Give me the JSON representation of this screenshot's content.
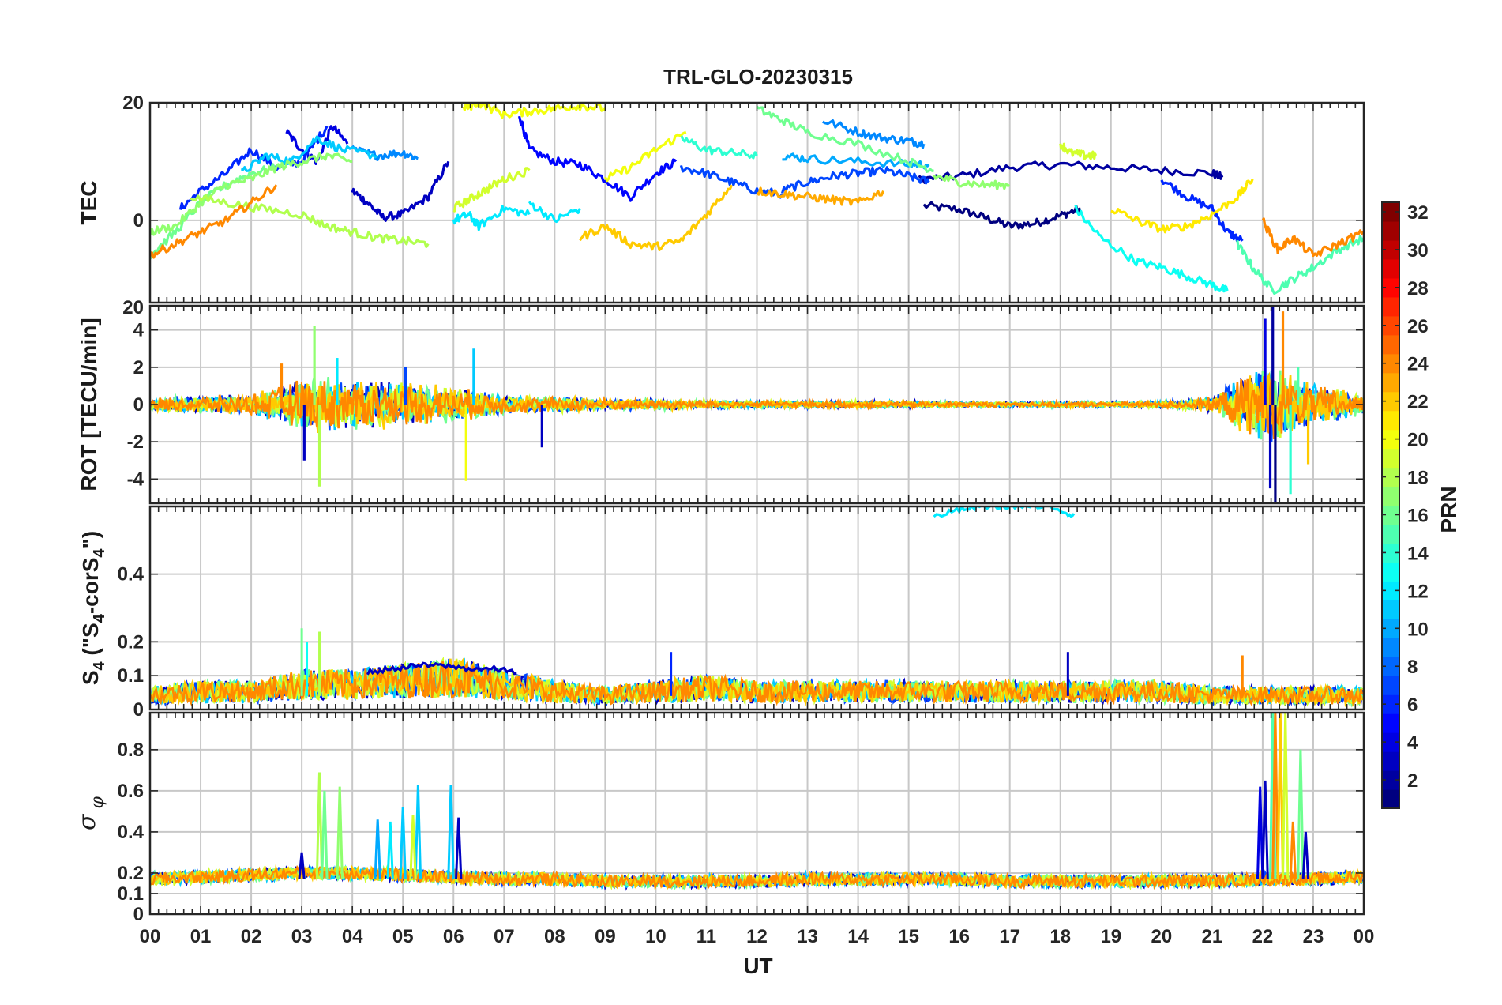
{
  "chart_data": {
    "title": "TRL-GLO-20230315",
    "type": "line",
    "xlabel": "UT",
    "x_tick_labels": [
      "00",
      "01",
      "02",
      "03",
      "04",
      "05",
      "06",
      "07",
      "08",
      "09",
      "10",
      "11",
      "12",
      "13",
      "14",
      "15",
      "16",
      "17",
      "18",
      "19",
      "20",
      "21",
      "22",
      "23",
      "00"
    ],
    "xlim_hours": [
      0,
      24
    ],
    "colorbar": {
      "label": "PRN",
      "range": [
        1,
        32
      ],
      "tick_labels": [
        "2",
        "4",
        "6",
        "8",
        "10",
        "12",
        "14",
        "16",
        "18",
        "20",
        "22",
        "24",
        "26",
        "28",
        "30",
        "32"
      ],
      "colormap": "jet"
    },
    "panels": [
      {
        "name": "tec",
        "ylabel": "TEC",
        "ylim": [
          -14,
          20
        ],
        "y_ticks": [
          0,
          20
        ],
        "y_tick_labels": [
          "0",
          "20"
        ],
        "series": [
          {
            "prn": 1,
            "x": [
              15.3,
              16.0,
              16.5,
              17.0,
              17.5,
              18.0,
              18.4
            ],
            "y": [
              2.5,
              1.8,
              0.5,
              -1.0,
              -0.5,
              0.8,
              2.0
            ]
          },
          {
            "prn": 2,
            "x": [
              15.2,
              16.0,
              17.0,
              18.0,
              19.0,
              20.0,
              21.0,
              21.2
            ],
            "y": [
              7.0,
              7.5,
              9.0,
              9.5,
              9.0,
              8.5,
              8.0,
              7.3
            ]
          },
          {
            "prn": 3,
            "x": [
              4.0,
              4.3,
              4.6,
              5.0,
              5.5,
              5.9
            ],
            "y": [
              5.0,
              3.0,
              0.5,
              1.0,
              4.0,
              10.0
            ]
          },
          {
            "prn": 4,
            "x": [
              2.7,
              3.0,
              3.3,
              3.6,
              3.9
            ],
            "y": [
              15.0,
              12.0,
              10.0,
              16.0,
              13.0
            ]
          },
          {
            "prn": 5,
            "x": [
              7.3,
              7.5,
              8.0,
              8.5,
              9.0,
              9.5,
              10.0,
              10.4
            ],
            "y": [
              18.0,
              12.0,
              10.0,
              9.5,
              7.0,
              4.0,
              8.0,
              10.0
            ]
          },
          {
            "prn": 6,
            "x": [
              0.6,
              1.0,
              1.5,
              2.0,
              2.5,
              3.0,
              3.5
            ],
            "y": [
              2.0,
              5.0,
              8.0,
              12.0,
              9.0,
              10.0,
              16.0
            ]
          },
          {
            "prn": 6,
            "x": [
              20.0,
              20.5,
              21.0,
              21.3,
              21.6
            ],
            "y": [
              7.0,
              4.0,
              2.0,
              -2.0,
              -3.5
            ]
          },
          {
            "prn": 7,
            "x": [
              12.5,
              13.0,
              13.5,
              14.0,
              14.5,
              15.0,
              15.4
            ],
            "y": [
              5.0,
              6.5,
              7.5,
              8.0,
              8.5,
              7.5,
              6.5
            ]
          },
          {
            "prn": 7,
            "x": [
              10.5,
              11.0,
              11.5,
              12.0,
              12.5
            ],
            "y": [
              9.0,
              8.0,
              6.5,
              5.0,
              4.5
            ]
          },
          {
            "prn": 9,
            "x": [
              4.0,
              4.5,
              5.0,
              5.3
            ],
            "y": [
              12.0,
              11.0,
              11.5,
              10.5
            ]
          },
          {
            "prn": 9,
            "x": [
              13.3,
              14.0,
              14.5,
              15.0,
              15.3
            ],
            "y": [
              17.0,
              15.0,
              14.0,
              13.5,
              13.0
            ]
          },
          {
            "prn": 10,
            "x": [
              12.5,
              13.0,
              14.0,
              15.0,
              15.4
            ],
            "y": [
              11.0,
              10.5,
              10.0,
              9.5,
              9.5
            ]
          },
          {
            "prn": 11,
            "x": [
              1.8,
              2.3,
              2.8,
              3.3,
              3.8,
              4.5
            ],
            "y": [
              8.0,
              11.0,
              10.0,
              14.0,
              12.0,
              11.0
            ]
          },
          {
            "prn": 12,
            "x": [
              6.0,
              6.3,
              6.5,
              7.0,
              7.5
            ],
            "y": [
              0.0,
              1.0,
              -1.0,
              2.0,
              1.0
            ]
          },
          {
            "prn": 12,
            "x": [
              7.5,
              8.0,
              8.5
            ],
            "y": [
              3.0,
              0.0,
              2.0
            ]
          },
          {
            "prn": 13,
            "x": [
              18.3,
              18.8,
              19.5,
              20.0,
              20.5,
              21.0,
              21.3
            ],
            "y": [
              2.0,
              -3.0,
              -7.0,
              -8.0,
              -9.5,
              -11.0,
              -12.0
            ]
          },
          {
            "prn": 14,
            "x": [
              10.5,
              11.0,
              11.5,
              12.0
            ],
            "y": [
              14.0,
              12.0,
              11.5,
              11.0
            ]
          },
          {
            "prn": 15,
            "x": [
              21.5,
              21.8,
              22.2,
              22.6,
              23.0,
              23.5,
              24.0
            ],
            "y": [
              -4.0,
              -8.0,
              -12.0,
              -10.0,
              -8.0,
              -5.0,
              -3.0
            ]
          },
          {
            "prn": 16,
            "x": [
              12.0,
              12.5,
              13.0,
              14.0,
              15.0,
              15.5
            ],
            "y": [
              19.0,
              17.0,
              15.0,
              13.0,
              10.0,
              8.5
            ]
          },
          {
            "prn": 16,
            "x": [
              0.0,
              0.5,
              1.0,
              1.5,
              2.0,
              2.5
            ],
            "y": [
              -6.0,
              -2.0,
              3.0,
              6.0,
              8.0,
              9.0
            ]
          },
          {
            "prn": 17,
            "x": [
              0.0,
              0.5,
              1.0,
              1.5,
              2.0,
              2.5,
              3.0,
              3.5,
              4.0
            ],
            "y": [
              -2.0,
              -1.0,
              3.0,
              6.0,
              7.0,
              9.0,
              10.0,
              11.0,
              10.0
            ]
          },
          {
            "prn": 17,
            "x": [
              15.5,
              16.0,
              16.5,
              17.0
            ],
            "y": [
              7.5,
              6.5,
              6.0,
              6.0
            ]
          },
          {
            "prn": 18,
            "x": [
              0.8,
              1.5,
              2.2,
              3.0,
              3.5,
              4.0,
              4.5,
              5.0,
              5.5
            ],
            "y": [
              4.0,
              3.0,
              2.0,
              1.0,
              -1.0,
              -2.0,
              -3.0,
              -3.5,
              -4.0
            ]
          },
          {
            "prn": 19,
            "x": [
              6.0,
              6.3,
              6.6,
              7.0,
              7.5
            ],
            "y": [
              2.0,
              3.5,
              5.0,
              7.0,
              8.5
            ]
          },
          {
            "prn": 19,
            "x": [
              18.0,
              18.2,
              18.5,
              18.7
            ],
            "y": [
              13.0,
              11.5,
              11.0,
              11.0
            ]
          },
          {
            "prn": 20,
            "x": [
              6.2,
              6.5,
              7.0,
              7.5,
              8.0,
              8.5,
              9.0
            ],
            "y": [
              19.0,
              20.0,
              18.0,
              18.5,
              19.0,
              19.5,
              19.0
            ]
          },
          {
            "prn": 20,
            "x": [
              9.0,
              9.5,
              10.0,
              10.6
            ],
            "y": [
              7.0,
              9.0,
              12.0,
              15.0
            ]
          },
          {
            "prn": 21,
            "x": [
              19.0,
              19.5,
              20.0,
              20.5,
              21.0,
              21.5,
              21.8
            ],
            "y": [
              2.0,
              0.0,
              -1.5,
              -1.0,
              1.0,
              4.0,
              7.0
            ]
          },
          {
            "prn": 22,
            "x": [
              8.5,
              9.0,
              9.5,
              10.0,
              10.5,
              11.0,
              11.5
            ],
            "y": [
              -3.0,
              -1.0,
              -4.0,
              -4.5,
              -3.5,
              1.0,
              6.0
            ]
          },
          {
            "prn": 23,
            "x": [
              12.0,
              12.5,
              13.0,
              13.5,
              14.0,
              14.5
            ],
            "y": [
              5.0,
              4.5,
              4.0,
              3.5,
              3.0,
              5.0
            ]
          },
          {
            "prn": 24,
            "x": [
              0.0,
              0.5,
              1.0,
              1.5,
              2.0,
              2.5
            ],
            "y": [
              -6.0,
              -4.0,
              -2.0,
              0.0,
              3.0,
              6.0
            ]
          },
          {
            "prn": 24,
            "x": [
              22.0,
              22.3,
              22.6,
              23.0,
              23.5,
              24.0
            ],
            "y": [
              0.0,
              -5.0,
              -3.0,
              -6.0,
              -4.0,
              -2.0
            ]
          }
        ]
      },
      {
        "name": "rot",
        "ylabel": "ROT [TECU/min]",
        "ylim": [
          -5.3,
          5.3
        ],
        "y_ticks": [
          -4,
          -2,
          0,
          2,
          4
        ],
        "y_tick_labels": [
          "-4",
          "-2",
          "0",
          "2",
          "4"
        ],
        "overlay_labels": [
          "20"
        ],
        "quiet_amplitude_by_hour": [
          0.4,
          0.5,
          0.6,
          1.6,
          1.5,
          1.3,
          1.0,
          0.6,
          0.45,
          0.35,
          0.3,
          0.25,
          0.2,
          0.2,
          0.2,
          0.2,
          0.15,
          0.15,
          0.15,
          0.15,
          0.2,
          0.4,
          2.5,
          1.2,
          0.6
        ],
        "spikes": [
          {
            "x": 3.25,
            "y": 4.2,
            "prn": 17
          },
          {
            "x": 3.35,
            "y": -4.4,
            "prn": 18
          },
          {
            "x": 3.05,
            "y": -3.0,
            "prn": 3
          },
          {
            "x": 3.7,
            "y": 2.5,
            "prn": 12
          },
          {
            "x": 2.6,
            "y": 2.2,
            "prn": 24
          },
          {
            "x": 6.25,
            "y": -4.1,
            "prn": 20
          },
          {
            "x": 6.4,
            "y": 3.0,
            "prn": 11
          },
          {
            "x": 7.75,
            "y": -2.3,
            "prn": 3
          },
          {
            "x": 5.05,
            "y": 2.0,
            "prn": 7
          },
          {
            "x": 22.05,
            "y": 4.6,
            "prn": 4
          },
          {
            "x": 22.15,
            "y": -4.5,
            "prn": 3
          },
          {
            "x": 22.2,
            "y": 5.3,
            "prn": 2
          },
          {
            "x": 22.25,
            "y": -5.3,
            "prn": 1
          },
          {
            "x": 22.4,
            "y": 5.0,
            "prn": 24
          },
          {
            "x": 22.55,
            "y": -4.8,
            "prn": 14
          },
          {
            "x": 22.7,
            "y": 2.0,
            "prn": 15
          },
          {
            "x": 22.9,
            "y": -3.2,
            "prn": 22
          }
        ]
      },
      {
        "name": "s4",
        "ylabel": "S4 (\"S4-corS4\")",
        "ylim": [
          0,
          0.6
        ],
        "y_ticks": [
          0,
          0.1,
          0.2,
          0.4
        ],
        "y_tick_labels": [
          "0",
          "0.1",
          "0.2",
          "0.4"
        ],
        "base_level_by_hour": [
          0.04,
          0.05,
          0.05,
          0.07,
          0.07,
          0.08,
          0.09,
          0.07,
          0.05,
          0.04,
          0.05,
          0.06,
          0.05,
          0.05,
          0.05,
          0.05,
          0.05,
          0.05,
          0.05,
          0.05,
          0.05,
          0.04,
          0.04,
          0.04,
          0.04
        ],
        "elevated_segments": [
          {
            "prn": 12,
            "x": [
              15.5,
              16.0,
              16.5,
              17.0,
              17.5,
              18.0,
              18.3
            ],
            "y": [
              0.57,
              0.59,
              0.6,
              0.6,
              0.6,
              0.59,
              0.57
            ]
          },
          {
            "prn": 3,
            "x": [
              4.3,
              4.8,
              5.3,
              5.8,
              6.3,
              6.8,
              7.3
            ],
            "y": [
              0.11,
              0.12,
              0.13,
              0.13,
              0.12,
              0.12,
              0.11
            ]
          }
        ],
        "spikes": [
          {
            "x": 3.0,
            "y": 0.24,
            "prn": 16
          },
          {
            "x": 3.35,
            "y": 0.23,
            "prn": 18
          },
          {
            "x": 10.3,
            "y": 0.17,
            "prn": 6
          },
          {
            "x": 18.15,
            "y": 0.17,
            "prn": 3
          },
          {
            "x": 21.6,
            "y": 0.16,
            "prn": 24
          },
          {
            "x": 3.1,
            "y": 0.2,
            "prn": 13
          }
        ]
      },
      {
        "name": "sigma_phi",
        "ylabel": "σφ",
        "ylim": [
          0,
          0.98
        ],
        "y_ticks": [
          0,
          0.1,
          0.2,
          0.4,
          0.6,
          0.8
        ],
        "y_tick_labels": [
          "0",
          "0.1",
          "0.2",
          "0.4",
          "0.6",
          "0.8"
        ],
        "base_level_by_hour": [
          0.17,
          0.18,
          0.19,
          0.2,
          0.2,
          0.19,
          0.18,
          0.17,
          0.17,
          0.16,
          0.16,
          0.16,
          0.16,
          0.17,
          0.17,
          0.17,
          0.17,
          0.16,
          0.16,
          0.16,
          0.16,
          0.16,
          0.17,
          0.17,
          0.18
        ],
        "spikes": [
          {
            "x": 3.35,
            "y": 0.69,
            "prn": 18
          },
          {
            "x": 3.45,
            "y": 0.6,
            "prn": 16
          },
          {
            "x": 3.75,
            "y": 0.62,
            "prn": 17
          },
          {
            "x": 4.5,
            "y": 0.46,
            "prn": 10
          },
          {
            "x": 4.75,
            "y": 0.45,
            "prn": 12
          },
          {
            "x": 5.0,
            "y": 0.52,
            "prn": 11
          },
          {
            "x": 5.3,
            "y": 0.63,
            "prn": 11
          },
          {
            "x": 5.2,
            "y": 0.48,
            "prn": 19
          },
          {
            "x": 5.95,
            "y": 0.63,
            "prn": 11
          },
          {
            "x": 6.1,
            "y": 0.47,
            "prn": 3
          },
          {
            "x": 3.0,
            "y": 0.3,
            "prn": 3
          },
          {
            "x": 21.95,
            "y": 0.62,
            "prn": 4
          },
          {
            "x": 22.05,
            "y": 0.65,
            "prn": 3
          },
          {
            "x": 22.2,
            "y": 0.98,
            "prn": 15
          },
          {
            "x": 22.25,
            "y": 0.98,
            "prn": 24
          },
          {
            "x": 22.35,
            "y": 0.98,
            "prn": 22
          },
          {
            "x": 22.45,
            "y": 0.98,
            "prn": 19
          },
          {
            "x": 22.6,
            "y": 0.45,
            "prn": 24
          },
          {
            "x": 22.75,
            "y": 0.8,
            "prn": 16
          },
          {
            "x": 22.85,
            "y": 0.4,
            "prn": 3
          }
        ]
      }
    ]
  }
}
